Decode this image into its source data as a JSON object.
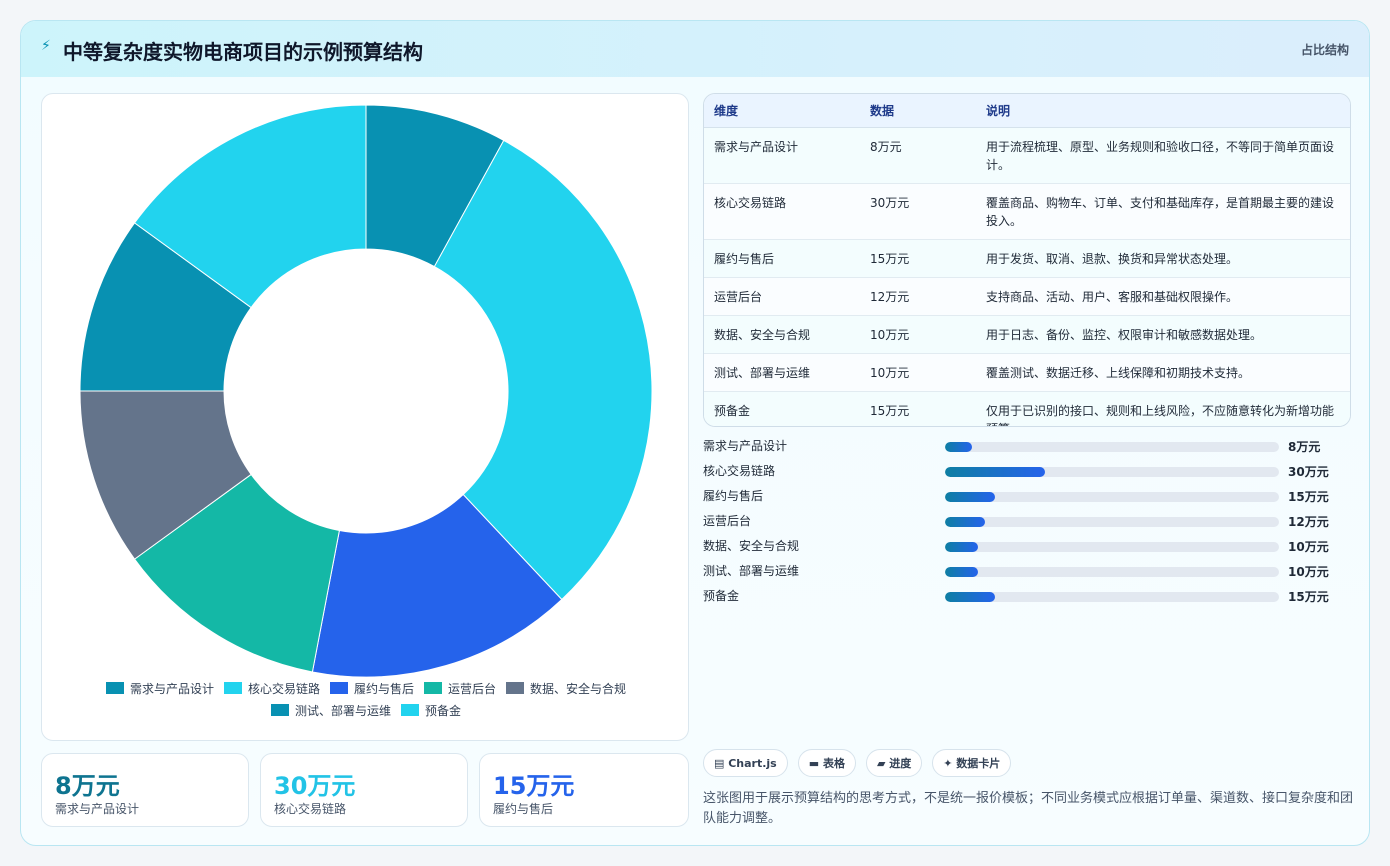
{
  "header": {
    "title": "中等复杂度实物电商项目的示例预算结构",
    "tag": "占比结构",
    "icon": "bolt-icon"
  },
  "chart_data": {
    "type": "pie",
    "donut": true,
    "categories": [
      "需求与产品设计",
      "核心交易链路",
      "履约与售后",
      "运营后台",
      "数据、安全与合规",
      "测试、部署与运维",
      "预备金"
    ],
    "values": [
      8,
      30,
      15,
      12,
      10,
      10,
      15
    ],
    "unit": "万元",
    "colors": [
      "#0891b2",
      "#22d3ee",
      "#2563eb",
      "#14b8a6",
      "#64748b",
      "#0891b2",
      "#22d3ee"
    ],
    "legend_position": "bottom"
  },
  "stats": [
    {
      "value": "8万元",
      "label": "需求与产品设计",
      "color": "#0e7490"
    },
    {
      "value": "30万元",
      "label": "核心交易链路",
      "color": "#22c3e6"
    },
    {
      "value": "15万元",
      "label": "履约与售后",
      "color": "#2563eb"
    }
  ],
  "table": {
    "headers": [
      "维度",
      "数据",
      "说明"
    ],
    "rows": [
      [
        "需求与产品设计",
        "8万元",
        "用于流程梳理、原型、业务规则和验收口径，不等同于简单页面设计。"
      ],
      [
        "核心交易链路",
        "30万元",
        "覆盖商品、购物车、订单、支付和基础库存，是首期最主要的建设投入。"
      ],
      [
        "履约与售后",
        "15万元",
        "用于发货、取消、退款、换货和异常状态处理。"
      ],
      [
        "运营后台",
        "12万元",
        "支持商品、活动、用户、客服和基础权限操作。"
      ],
      [
        "数据、安全与合规",
        "10万元",
        "用于日志、备份、监控、权限审计和敏感数据处理。"
      ],
      [
        "测试、部署与运维",
        "10万元",
        "覆盖测试、数据迁移、上线保障和初期技术支持。"
      ],
      [
        "预备金",
        "15万元",
        "仅用于已识别的接口、规则和上线风险，不应随意转化为新增功能预算。"
      ]
    ]
  },
  "progress": {
    "max": 100,
    "items": [
      {
        "label": "需求与产品设计",
        "value": 8,
        "text": "8万元"
      },
      {
        "label": "核心交易链路",
        "value": 30,
        "text": "30万元"
      },
      {
        "label": "履约与售后",
        "value": 15,
        "text": "15万元"
      },
      {
        "label": "运营后台",
        "value": 12,
        "text": "12万元"
      },
      {
        "label": "数据、安全与合规",
        "value": 10,
        "text": "10万元"
      },
      {
        "label": "测试、部署与运维",
        "value": 10,
        "text": "10万元"
      },
      {
        "label": "预备金",
        "value": 15,
        "text": "15万元"
      }
    ]
  },
  "chips": [
    {
      "icon": "chart-icon",
      "label": "▤ Chart.js"
    },
    {
      "icon": "table-icon",
      "label": "▬ 表格"
    },
    {
      "icon": "progress-icon",
      "label": "▰ 进度"
    },
    {
      "icon": "sparkle-icon",
      "label": "✦ 数据卡片"
    }
  ],
  "note": "这张图用于展示预算结构的思考方式，不是统一报价模板；不同业务模式应根据订单量、渠道数、接口复杂度和团队能力调整。"
}
